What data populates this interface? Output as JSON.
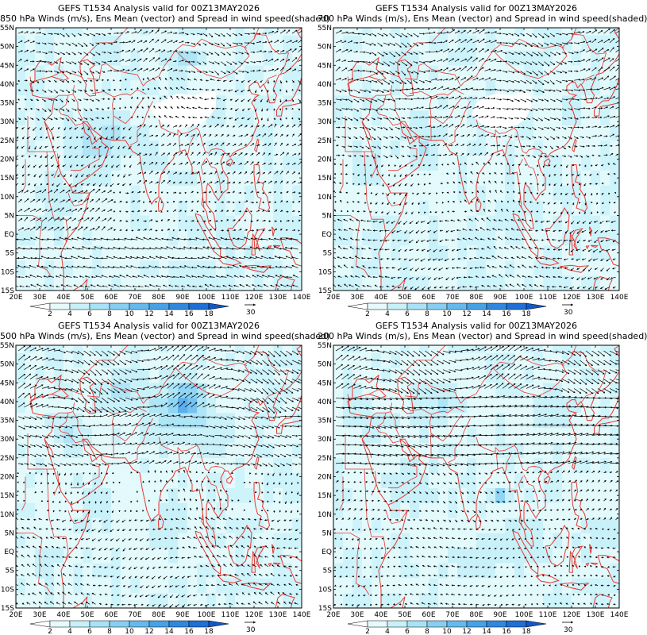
{
  "panels": [
    {
      "title": "GEFS T1534 Analysis valid for 00Z13MAY2026",
      "subtitle": "850 hPa Winds (m/s), Ens Mean (vector) and Spread in wind speed(shaded)",
      "level": 850
    },
    {
      "title": "GEFS T1534 Analysis valid for 00Z13MAY2026",
      "subtitle": "700 hPa Winds (m/s), Ens Mean (vector) and Spread in wind speed(shaded)",
      "level": 700
    },
    {
      "title": "GEFS T1534 Analysis valid for 00Z13MAY2026",
      "subtitle": "500 hPa Winds (m/s), Ens Mean (vector) and Spread in wind speed(shaded)",
      "level": 500
    },
    {
      "title": "GEFS T1534 Analysis valid for 00Z13MAY2026",
      "subtitle": "200 hPa Winds (m/s), Ens Mean (vector) and Spread in wind speed(shaded)",
      "level": 200
    }
  ],
  "lat_labels": [
    "55N",
    "50N",
    "45N",
    "40N",
    "35N",
    "30N",
    "25N",
    "20N",
    "15N",
    "10N",
    "5N",
    "EQ",
    "5S",
    "10S",
    "15S"
  ],
  "lon_labels": [
    "20E",
    "30E",
    "40E",
    "50E",
    "60E",
    "70E",
    "80E",
    "90E",
    "100E",
    "110E",
    "120E",
    "130E",
    "140E"
  ],
  "colorbar": {
    "ticks": [
      "2",
      "4",
      "6",
      "8",
      "10",
      "12",
      "14",
      "16",
      "18"
    ],
    "colors": [
      "#ffffff",
      "#e6fafc",
      "#c8f0f8",
      "#a8e2f6",
      "#86cff2",
      "#64baee",
      "#46a2e8",
      "#2f88e0",
      "#1e6fd6",
      "#1458c6"
    ]
  },
  "reference_vector": "30",
  "colors": {
    "coast": "#e8372f",
    "vector": "#000000",
    "spread_light": "#cdf3fb",
    "spread_mid": "#9fdcf3",
    "spread_dark": "#6fb8ea"
  }
}
